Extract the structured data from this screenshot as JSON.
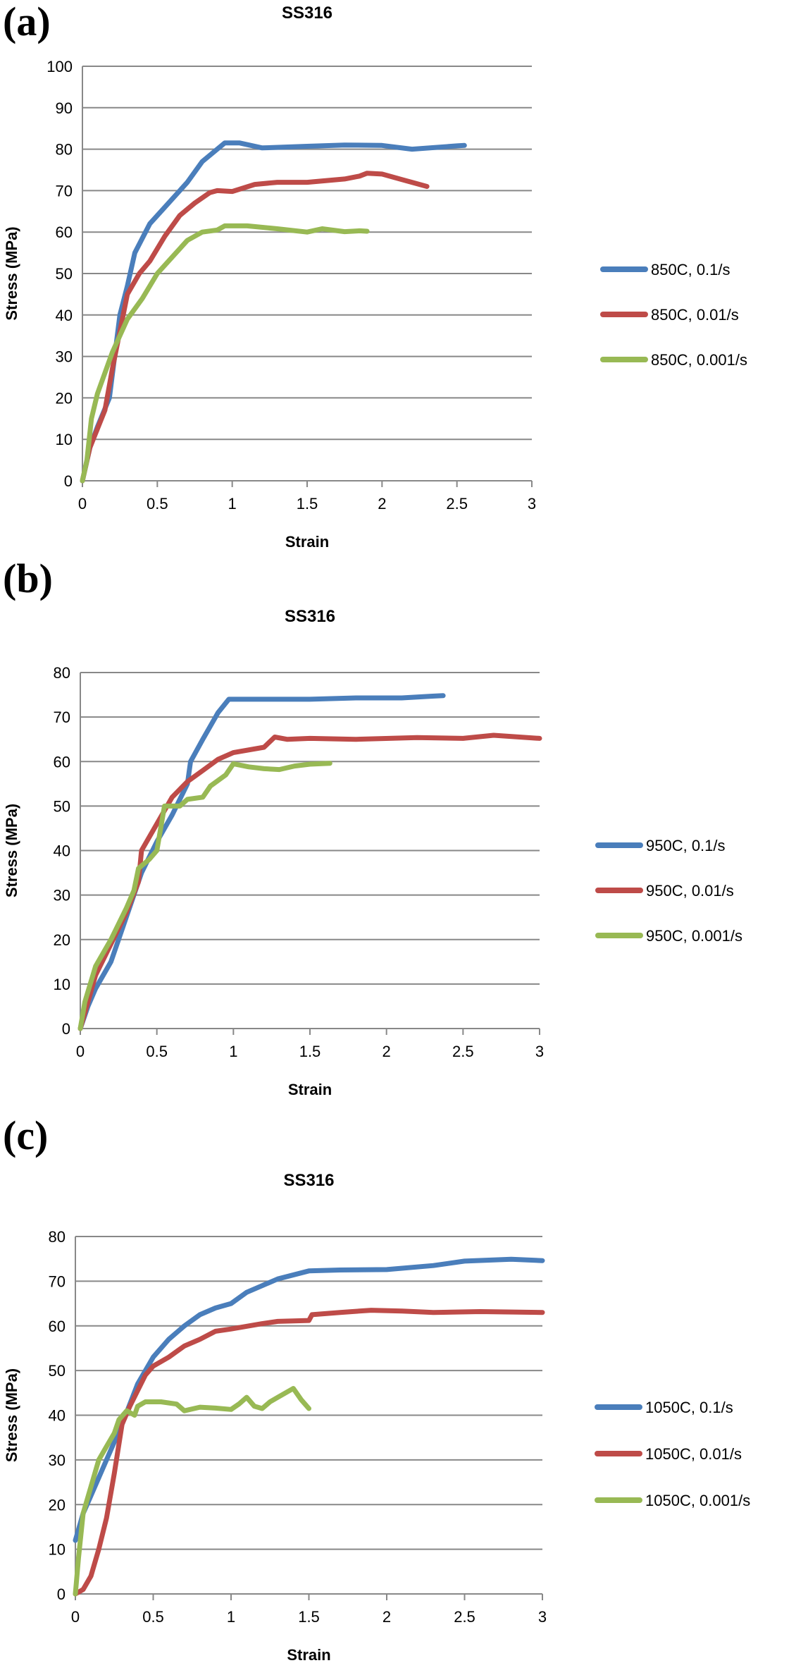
{
  "chart_data": [
    {
      "panel_label": "(a)",
      "type": "line",
      "title": "SS316",
      "xlabel": "Strain",
      "ylabel": "Stress (MPa)",
      "xlim": [
        0,
        3
      ],
      "ylim": [
        0,
        100
      ],
      "xticks": [
        "0",
        "0.5",
        "1",
        "1.5",
        "2",
        "2.5",
        "3"
      ],
      "yticks": [
        "0",
        "10",
        "20",
        "30",
        "40",
        "50",
        "60",
        "70",
        "80",
        "90",
        "100"
      ],
      "grid": "horizontal",
      "legend_position": "right",
      "series": [
        {
          "name": "850C, 0.1/s",
          "color": "#4a7ebb",
          "points": [
            [
              0,
              0
            ],
            [
              0.05,
              8
            ],
            [
              0.1,
              13
            ],
            [
              0.18,
              20
            ],
            [
              0.25,
              40
            ],
            [
              0.3,
              47
            ],
            [
              0.35,
              55
            ],
            [
              0.45,
              62
            ],
            [
              0.55,
              66
            ],
            [
              0.7,
              72
            ],
            [
              0.8,
              77
            ],
            [
              0.9,
              80
            ],
            [
              0.95,
              81.5
            ],
            [
              1.05,
              81.5
            ],
            [
              1.2,
              80.3
            ],
            [
              1.5,
              80.7
            ],
            [
              1.75,
              81
            ],
            [
              2.0,
              80.9
            ],
            [
              2.2,
              80
            ],
            [
              2.5,
              80.8
            ],
            [
              2.55,
              80.9
            ]
          ]
        },
        {
          "name": "850C, 0.01/s",
          "color": "#be4b48",
          "points": [
            [
              0,
              0
            ],
            [
              0.05,
              8
            ],
            [
              0.15,
              17
            ],
            [
              0.2,
              27
            ],
            [
              0.3,
              45
            ],
            [
              0.38,
              50
            ],
            [
              0.45,
              53
            ],
            [
              0.55,
              59
            ],
            [
              0.65,
              64
            ],
            [
              0.75,
              67
            ],
            [
              0.85,
              69.5
            ],
            [
              0.9,
              70
            ],
            [
              1.0,
              69.8
            ],
            [
              1.15,
              71.5
            ],
            [
              1.3,
              72
            ],
            [
              1.5,
              72
            ],
            [
              1.75,
              72.8
            ],
            [
              1.85,
              73.5
            ],
            [
              1.9,
              74.2
            ],
            [
              2.0,
              74
            ],
            [
              2.15,
              72.5
            ],
            [
              2.3,
              71
            ]
          ]
        },
        {
          "name": "850C, 0.001/s",
          "color": "#98b954",
          "points": [
            [
              0,
              0
            ],
            [
              0.03,
              5
            ],
            [
              0.06,
              15
            ],
            [
              0.1,
              21
            ],
            [
              0.2,
              31
            ],
            [
              0.3,
              39
            ],
            [
              0.4,
              44
            ],
            [
              0.5,
              50
            ],
            [
              0.6,
              54
            ],
            [
              0.7,
              58
            ],
            [
              0.8,
              60
            ],
            [
              0.9,
              60.5
            ],
            [
              0.95,
              61.5
            ],
            [
              1.1,
              61.5
            ],
            [
              1.3,
              60.8
            ],
            [
              1.5,
              60
            ],
            [
              1.6,
              60.8
            ],
            [
              1.75,
              60.1
            ],
            [
              1.85,
              60.3
            ],
            [
              1.9,
              60.2
            ]
          ]
        }
      ]
    },
    {
      "panel_label": "(b)",
      "type": "line",
      "title": "SS316",
      "xlabel": "Strain",
      "ylabel": "Stress (MPa)",
      "xlim": [
        0,
        3
      ],
      "ylim": [
        0,
        80
      ],
      "xticks": [
        "0",
        "0.5",
        "1",
        "1.5",
        "2",
        "2.5",
        "3"
      ],
      "yticks": [
        "0",
        "10",
        "20",
        "30",
        "40",
        "50",
        "60",
        "70",
        "80"
      ],
      "grid": "horizontal",
      "legend_position": "right",
      "series": [
        {
          "name": "950C, 0.1/s",
          "color": "#4a7ebb",
          "points": [
            [
              0,
              0
            ],
            [
              0.05,
              5
            ],
            [
              0.1,
              9
            ],
            [
              0.15,
              12
            ],
            [
              0.2,
              15
            ],
            [
              0.22,
              17
            ],
            [
              0.3,
              25
            ],
            [
              0.4,
              35
            ],
            [
              0.5,
              42
            ],
            [
              0.6,
              48
            ],
            [
              0.7,
              55
            ],
            [
              0.72,
              60
            ],
            [
              0.8,
              65
            ],
            [
              0.9,
              71
            ],
            [
              0.97,
              74
            ],
            [
              1.2,
              74
            ],
            [
              1.5,
              74
            ],
            [
              1.8,
              74.3
            ],
            [
              2.1,
              74.3
            ],
            [
              2.3,
              74.7
            ],
            [
              2.37,
              74.8
            ]
          ]
        },
        {
          "name": "950C, 0.01/s",
          "color": "#be4b48",
          "points": [
            [
              0,
              0
            ],
            [
              0.05,
              6
            ],
            [
              0.1,
              12
            ],
            [
              0.2,
              19
            ],
            [
              0.3,
              26
            ],
            [
              0.38,
              33
            ],
            [
              0.4,
              40
            ],
            [
              0.5,
              46
            ],
            [
              0.6,
              52
            ],
            [
              0.7,
              55.5
            ],
            [
              0.8,
              58
            ],
            [
              0.9,
              60.5
            ],
            [
              1.0,
              62
            ],
            [
              1.2,
              63.2
            ],
            [
              1.27,
              65.5
            ],
            [
              1.35,
              65
            ],
            [
              1.5,
              65.2
            ],
            [
              1.8,
              65
            ],
            [
              2.2,
              65.4
            ],
            [
              2.5,
              65.2
            ],
            [
              2.7,
              65.9
            ],
            [
              3.0,
              65.2
            ]
          ]
        },
        {
          "name": "950C, 0.001/s",
          "color": "#98b954",
          "points": [
            [
              0,
              0
            ],
            [
              0.03,
              6
            ],
            [
              0.1,
              14
            ],
            [
              0.2,
              20
            ],
            [
              0.3,
              27
            ],
            [
              0.35,
              31
            ],
            [
              0.38,
              36
            ],
            [
              0.45,
              38
            ],
            [
              0.5,
              40
            ],
            [
              0.55,
              50
            ],
            [
              0.65,
              50
            ],
            [
              0.7,
              51.5
            ],
            [
              0.8,
              52
            ],
            [
              0.85,
              54.5
            ],
            [
              0.95,
              57
            ],
            [
              1.0,
              59.5
            ],
            [
              1.1,
              58.8
            ],
            [
              1.2,
              58.4
            ],
            [
              1.3,
              58.2
            ],
            [
              1.4,
              59
            ],
            [
              1.5,
              59.4
            ],
            [
              1.63,
              59.6
            ]
          ]
        }
      ]
    },
    {
      "panel_label": "(c)",
      "type": "line",
      "title": "SS316",
      "xlabel": "Strain",
      "ylabel": "Stress (MPa)",
      "xlim": [
        0,
        3
      ],
      "ylim": [
        0,
        80
      ],
      "xticks": [
        "0",
        "0.5",
        "1",
        "1.5",
        "2",
        "2.5",
        "3"
      ],
      "yticks": [
        "0",
        "10",
        "20",
        "30",
        "40",
        "50",
        "60",
        "70",
        "80"
      ],
      "grid": "horizontal",
      "legend_position": "right",
      "series": [
        {
          "name": "1050C, 0.1/s",
          "color": "#4a7ebb",
          "points": [
            [
              0,
              12
            ],
            [
              0.05,
              18
            ],
            [
              0.1,
              22
            ],
            [
              0.2,
              30
            ],
            [
              0.3,
              38
            ],
            [
              0.4,
              47
            ],
            [
              0.5,
              53
            ],
            [
              0.6,
              57
            ],
            [
              0.7,
              60
            ],
            [
              0.8,
              62.5
            ],
            [
              0.9,
              64
            ],
            [
              1.0,
              65
            ],
            [
              1.1,
              67.5
            ],
            [
              1.2,
              69
            ],
            [
              1.3,
              70.5
            ],
            [
              1.5,
              72.3
            ],
            [
              1.7,
              72.5
            ],
            [
              2.0,
              72.6
            ],
            [
              2.3,
              73.5
            ],
            [
              2.5,
              74.5
            ],
            [
              2.8,
              74.9
            ],
            [
              3.0,
              74.6
            ]
          ]
        },
        {
          "name": "1050C, 0.01/s",
          "color": "#be4b48",
          "points": [
            [
              0,
              0
            ],
            [
              0.05,
              1
            ],
            [
              0.1,
              4
            ],
            [
              0.15,
              10
            ],
            [
              0.2,
              17
            ],
            [
              0.25,
              27
            ],
            [
              0.3,
              38
            ],
            [
              0.35,
              42
            ],
            [
              0.45,
              49
            ],
            [
              0.5,
              51
            ],
            [
              0.6,
              53
            ],
            [
              0.7,
              55.5
            ],
            [
              0.8,
              57
            ],
            [
              0.9,
              58.8
            ],
            [
              1.0,
              59.3
            ],
            [
              1.2,
              60.5
            ],
            [
              1.3,
              61
            ],
            [
              1.5,
              61.2
            ],
            [
              1.52,
              62.5
            ],
            [
              1.7,
              63
            ],
            [
              1.9,
              63.5
            ],
            [
              2.1,
              63.3
            ],
            [
              2.3,
              63
            ],
            [
              2.6,
              63.2
            ],
            [
              3.0,
              63
            ]
          ]
        },
        {
          "name": "1050C, 0.001/s",
          "color": "#98b954",
          "points": [
            [
              0,
              0
            ],
            [
              0.02,
              8
            ],
            [
              0.05,
              18
            ],
            [
              0.1,
              24
            ],
            [
              0.15,
              30
            ],
            [
              0.2,
              33
            ],
            [
              0.25,
              36
            ],
            [
              0.28,
              39
            ],
            [
              0.33,
              41
            ],
            [
              0.38,
              40
            ],
            [
              0.4,
              42
            ],
            [
              0.45,
              43
            ],
            [
              0.55,
              43
            ],
            [
              0.65,
              42.5
            ],
            [
              0.7,
              41
            ],
            [
              0.8,
              41.8
            ],
            [
              0.9,
              41.6
            ],
            [
              1.0,
              41.3
            ],
            [
              1.05,
              42.5
            ],
            [
              1.1,
              44
            ],
            [
              1.15,
              42
            ],
            [
              1.2,
              41.5
            ],
            [
              1.25,
              43
            ],
            [
              1.3,
              44
            ],
            [
              1.4,
              46
            ],
            [
              1.45,
              43.5
            ],
            [
              1.5,
              41.5
            ]
          ]
        }
      ]
    }
  ]
}
